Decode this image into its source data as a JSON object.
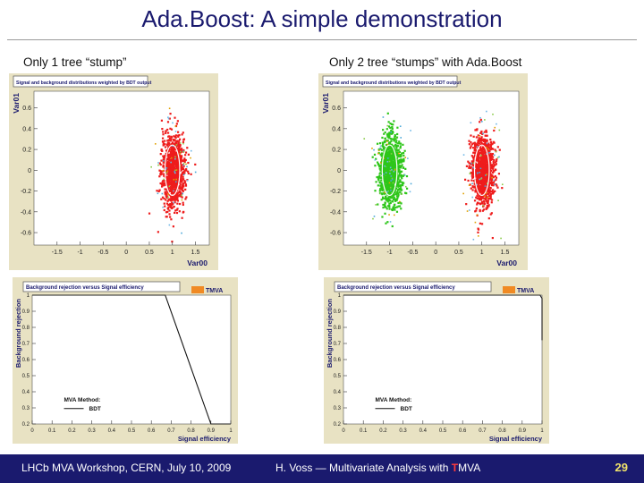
{
  "slide": {
    "title": "Ada.Boost: A simple demonstration",
    "left_subtitle": "Only 1 tree “stump”",
    "right_subtitle": "Only 2 tree “stumps” with Ada.Boost"
  },
  "footer": {
    "left": "LHCb MVA Workshop, CERN, July 10, 2009",
    "center_prefix": "H. Voss — Multivariate Analysis with ",
    "center_t": "T",
    "center_suffix": "MVA",
    "page": "29"
  },
  "colors": {
    "signal": "#2ec61a",
    "background": "#ee1c1c",
    "panel_bg": "#e8e2c3",
    "footer_bg": "#1a1a6e"
  },
  "chart_data": [
    {
      "type": "scatter",
      "title": "Signal and background distributions weighted by BDT output",
      "xlabel": "Var00",
      "ylabel": "Var01",
      "xlim": [
        -2.0,
        1.8
      ],
      "ylim": [
        -0.72,
        0.76
      ],
      "xticks": [
        "-1.5",
        "-1",
        "-0.5",
        "0",
        "0.5",
        "1",
        "1.5"
      ],
      "xtick_values": [
        -1.5,
        -1,
        -0.5,
        0,
        0.5,
        1,
        1.5
      ],
      "yticks": [
        "0.6",
        "0.4",
        "0.2",
        "0",
        "-0.2",
        "-0.4",
        "-0.6"
      ],
      "ytick_values": [
        0.6,
        0.4,
        0.2,
        0,
        -0.2,
        -0.4,
        -0.6
      ],
      "series": [
        {
          "center": [
            1.0,
            0.0
          ],
          "spread": [
            0.32,
            0.44
          ],
          "color": "#ee1c1c"
        }
      ]
    },
    {
      "type": "scatter",
      "title": "Signal and background distributions weighted by BDT output",
      "xlabel": "Var00",
      "ylabel": "Var01",
      "xlim": [
        -2.0,
        1.8
      ],
      "ylim": [
        -0.72,
        0.76
      ],
      "xticks": [
        "-1.5",
        "-1",
        "-0.5",
        "0",
        "0.5",
        "1",
        "1.5"
      ],
      "xtick_values": [
        -1.5,
        -1,
        -0.5,
        0,
        0.5,
        1,
        1.5
      ],
      "yticks": [
        "0.6",
        "0.4",
        "0.2",
        "0",
        "-0.2",
        "-0.4",
        "-0.6"
      ],
      "ytick_values": [
        0.6,
        0.4,
        0.2,
        0,
        -0.2,
        -0.4,
        -0.6
      ],
      "series": [
        {
          "center": [
            -1.0,
            0.0
          ],
          "spread": [
            0.32,
            0.44
          ],
          "color": "#2ec61a"
        },
        {
          "center": [
            1.0,
            0.0
          ],
          "spread": [
            0.32,
            0.44
          ],
          "color": "#ee1c1c"
        }
      ]
    },
    {
      "type": "line",
      "title": "Background rejection versus Signal efficiency",
      "xlabel": "Signal efficiency",
      "ylabel": "Background rejection",
      "logo": "TMVA",
      "xlim": [
        0,
        1
      ],
      "ylim": [
        0.2,
        1.0
      ],
      "xticks": [
        "0",
        "0.1",
        "0.2",
        "0.3",
        "0.4",
        "0.5",
        "0.6",
        "0.7",
        "0.8",
        "0.9",
        "1"
      ],
      "xtick_values": [
        0,
        0.1,
        0.2,
        0.3,
        0.4,
        0.5,
        0.6,
        0.7,
        0.8,
        0.9,
        1
      ],
      "yticks": [
        "1",
        "0.9",
        "0.8",
        "0.7",
        "0.6",
        "0.5",
        "0.4",
        "0.3",
        "0.2"
      ],
      "ytick_values": [
        1,
        0.9,
        0.8,
        0.7,
        0.6,
        0.5,
        0.4,
        0.3,
        0.2
      ],
      "legend_title": "MVA Method:",
      "series": [
        {
          "name": "BDT",
          "x": [
            0,
            0.67,
            0.9,
            1.0
          ],
          "y": [
            1.0,
            1.0,
            0.2,
            0.2
          ]
        }
      ]
    },
    {
      "type": "line",
      "title": "Background rejection versus Signal efficiency",
      "xlabel": "Signal efficiency",
      "ylabel": "Background rejection",
      "logo": "TMVA",
      "xlim": [
        0,
        1
      ],
      "ylim": [
        0.2,
        1.0
      ],
      "xticks": [
        "0",
        "0.1",
        "0.2",
        "0.3",
        "0.4",
        "0.5",
        "0.6",
        "0.7",
        "0.8",
        "0.9",
        "1"
      ],
      "xtick_values": [
        0,
        0.1,
        0.2,
        0.3,
        0.4,
        0.5,
        0.6,
        0.7,
        0.8,
        0.9,
        1
      ],
      "yticks": [
        "1",
        "0.9",
        "0.8",
        "0.7",
        "0.6",
        "0.5",
        "0.4",
        "0.3",
        "0.2"
      ],
      "ytick_values": [
        1,
        0.9,
        0.8,
        0.7,
        0.6,
        0.5,
        0.4,
        0.3,
        0.2
      ],
      "legend_title": "MVA Method:",
      "series": [
        {
          "name": "BDT",
          "x": [
            0,
            0.99,
            1.0,
            1.0
          ],
          "y": [
            1.0,
            1.0,
            0.98,
            0.72
          ]
        }
      ]
    }
  ]
}
